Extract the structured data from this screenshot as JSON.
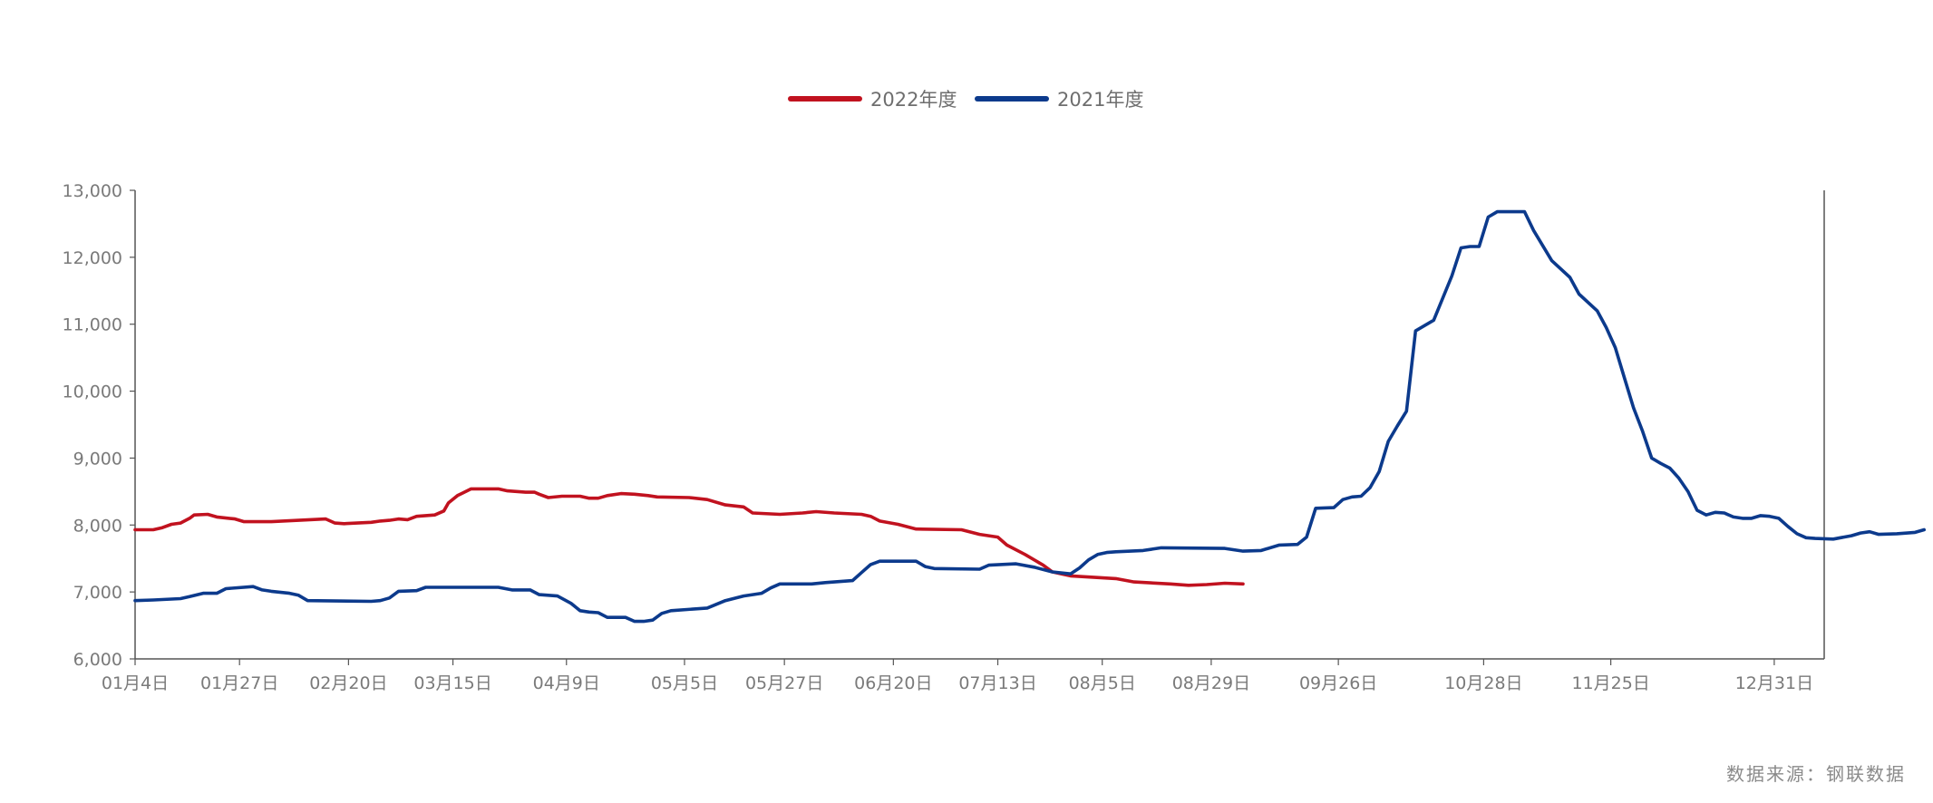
{
  "source_note": "数据来源：钢联数据",
  "colors": {
    "series_2022": "#c1121f",
    "series_2021": "#0c3a8c",
    "axis": "#555555",
    "tick_text": "#7a7a7a"
  },
  "chart_data": {
    "type": "line",
    "title": "",
    "xlabel": "",
    "ylabel": "",
    "ylim": [
      6000,
      13000
    ],
    "yticks": [
      6000,
      7000,
      8000,
      9000,
      10000,
      11000,
      12000,
      13000
    ],
    "ytick_labels": [
      "6,000",
      "7,000",
      "8,000",
      "9,000",
      "10,000",
      "11,000",
      "12,000",
      "13,000"
    ],
    "xticks": [
      {
        "day": 4,
        "label": "01月4日"
      },
      {
        "day": 27,
        "label": "01月27日"
      },
      {
        "day": 51,
        "label": "02月20日"
      },
      {
        "day": 74,
        "label": "03月15日"
      },
      {
        "day": 99,
        "label": "04月9日"
      },
      {
        "day": 125,
        "label": "05月5日"
      },
      {
        "day": 147,
        "label": "05月27日"
      },
      {
        "day": 171,
        "label": "06月20日"
      },
      {
        "day": 194,
        "label": "07月13日"
      },
      {
        "day": 217,
        "label": "08月5日"
      },
      {
        "day": 241,
        "label": "08月29日"
      },
      {
        "day": 269,
        "label": "09月26日"
      },
      {
        "day": 301,
        "label": "10月28日"
      },
      {
        "day": 329,
        "label": "11月25日"
      },
      {
        "day": 365,
        "label": "12月31日"
      }
    ],
    "legend_position": "top-center",
    "grid": false,
    "series": [
      {
        "name": "2022年度",
        "points": [
          [
            4,
            7930
          ],
          [
            8,
            7930
          ],
          [
            10,
            7960
          ],
          [
            12,
            8010
          ],
          [
            14,
            8030
          ],
          [
            16,
            8100
          ],
          [
            17,
            8150
          ],
          [
            20,
            8160
          ],
          [
            22,
            8120
          ],
          [
            26,
            8090
          ],
          [
            28,
            8050
          ],
          [
            34,
            8050
          ],
          [
            40,
            8070
          ],
          [
            46,
            8090
          ],
          [
            48,
            8030
          ],
          [
            50,
            8020
          ],
          [
            56,
            8040
          ],
          [
            58,
            8060
          ],
          [
            60,
            8070
          ],
          [
            62,
            8090
          ],
          [
            64,
            8080
          ],
          [
            66,
            8130
          ],
          [
            70,
            8150
          ],
          [
            72,
            8210
          ],
          [
            73,
            8330
          ],
          [
            75,
            8440
          ],
          [
            78,
            8540
          ],
          [
            84,
            8540
          ],
          [
            86,
            8510
          ],
          [
            90,
            8490
          ],
          [
            92,
            8490
          ],
          [
            93,
            8460
          ],
          [
            95,
            8410
          ],
          [
            98,
            8430
          ],
          [
            102,
            8430
          ],
          [
            104,
            8400
          ],
          [
            106,
            8400
          ],
          [
            108,
            8440
          ],
          [
            111,
            8470
          ],
          [
            114,
            8460
          ],
          [
            117,
            8440
          ],
          [
            119,
            8420
          ],
          [
            126,
            8410
          ],
          [
            130,
            8380
          ],
          [
            134,
            8300
          ],
          [
            138,
            8270
          ],
          [
            140,
            8180
          ],
          [
            146,
            8160
          ],
          [
            151,
            8180
          ],
          [
            154,
            8200
          ],
          [
            158,
            8180
          ],
          [
            164,
            8160
          ],
          [
            166,
            8130
          ],
          [
            168,
            8060
          ],
          [
            172,
            8010
          ],
          [
            176,
            7940
          ],
          [
            186,
            7930
          ],
          [
            190,
            7860
          ],
          [
            194,
            7820
          ],
          [
            196,
            7700
          ],
          [
            200,
            7560
          ],
          [
            204,
            7400
          ],
          [
            206,
            7300
          ],
          [
            210,
            7240
          ],
          [
            220,
            7200
          ],
          [
            224,
            7150
          ],
          [
            232,
            7120
          ],
          [
            236,
            7100
          ],
          [
            240,
            7110
          ],
          [
            244,
            7130
          ],
          [
            248,
            7120
          ]
        ]
      },
      {
        "name": "2021年度",
        "points": [
          [
            4,
            6870
          ],
          [
            8,
            6880
          ],
          [
            14,
            6900
          ],
          [
            16,
            6930
          ],
          [
            19,
            6980
          ],
          [
            22,
            6980
          ],
          [
            24,
            7050
          ],
          [
            30,
            7080
          ],
          [
            32,
            7030
          ],
          [
            34,
            7010
          ],
          [
            38,
            6980
          ],
          [
            40,
            6950
          ],
          [
            42,
            6870
          ],
          [
            56,
            6860
          ],
          [
            58,
            6870
          ],
          [
            60,
            6910
          ],
          [
            62,
            7010
          ],
          [
            66,
            7020
          ],
          [
            68,
            7070
          ],
          [
            84,
            7070
          ],
          [
            87,
            7030
          ],
          [
            91,
            7030
          ],
          [
            93,
            6960
          ],
          [
            97,
            6940
          ],
          [
            100,
            6830
          ],
          [
            102,
            6720
          ],
          [
            104,
            6700
          ],
          [
            106,
            6690
          ],
          [
            108,
            6620
          ],
          [
            112,
            6620
          ],
          [
            114,
            6560
          ],
          [
            116,
            6560
          ],
          [
            118,
            6580
          ],
          [
            120,
            6680
          ],
          [
            122,
            6720
          ],
          [
            130,
            6760
          ],
          [
            134,
            6870
          ],
          [
            138,
            6940
          ],
          [
            142,
            6980
          ],
          [
            144,
            7060
          ],
          [
            146,
            7120
          ],
          [
            153,
            7120
          ],
          [
            156,
            7140
          ],
          [
            162,
            7170
          ],
          [
            164,
            7290
          ],
          [
            166,
            7410
          ],
          [
            168,
            7460
          ],
          [
            176,
            7460
          ],
          [
            178,
            7380
          ],
          [
            180,
            7350
          ],
          [
            190,
            7340
          ],
          [
            192,
            7400
          ],
          [
            198,
            7420
          ],
          [
            202,
            7370
          ],
          [
            206,
            7300
          ],
          [
            210,
            7270
          ],
          [
            212,
            7360
          ],
          [
            214,
            7480
          ],
          [
            216,
            7560
          ],
          [
            218,
            7590
          ],
          [
            220,
            7600
          ],
          [
            226,
            7620
          ],
          [
            228,
            7640
          ],
          [
            230,
            7660
          ],
          [
            244,
            7650
          ],
          [
            248,
            7610
          ],
          [
            252,
            7620
          ],
          [
            256,
            7700
          ],
          [
            260,
            7710
          ],
          [
            262,
            7820
          ],
          [
            264,
            8250
          ],
          [
            268,
            8260
          ],
          [
            270,
            8380
          ],
          [
            272,
            8420
          ],
          [
            274,
            8430
          ],
          [
            276,
            8560
          ],
          [
            278,
            8800
          ],
          [
            280,
            9250
          ],
          [
            282,
            9480
          ],
          [
            284,
            9700
          ],
          [
            286,
            10900
          ],
          [
            288,
            10980
          ],
          [
            290,
            11060
          ],
          [
            294,
            11720
          ],
          [
            296,
            12140
          ],
          [
            298,
            12160
          ],
          [
            300,
            12160
          ],
          [
            302,
            12600
          ],
          [
            304,
            12680
          ],
          [
            310,
            12680
          ],
          [
            312,
            12400
          ],
          [
            316,
            11950
          ],
          [
            320,
            11700
          ],
          [
            322,
            11450
          ],
          [
            326,
            11200
          ],
          [
            328,
            10950
          ],
          [
            330,
            10650
          ],
          [
            332,
            10200
          ],
          [
            334,
            9750
          ],
          [
            336,
            9400
          ],
          [
            338,
            9000
          ],
          [
            340,
            8920
          ],
          [
            342,
            8850
          ],
          [
            344,
            8700
          ],
          [
            346,
            8500
          ],
          [
            348,
            8220
          ],
          [
            350,
            8150
          ],
          [
            352,
            8190
          ],
          [
            354,
            8180
          ],
          [
            356,
            8120
          ],
          [
            358,
            8100
          ],
          [
            360,
            8100
          ],
          [
            362,
            8140
          ],
          [
            364,
            8130
          ],
          [
            366,
            8100
          ],
          [
            368,
            7980
          ],
          [
            370,
            7870
          ],
          [
            372,
            7810
          ],
          [
            374,
            7800
          ],
          [
            378,
            7790
          ],
          [
            382,
            7840
          ],
          [
            384,
            7880
          ],
          [
            386,
            7900
          ],
          [
            388,
            7860
          ],
          [
            392,
            7870
          ],
          [
            396,
            7890
          ],
          [
            398,
            7930
          ]
        ]
      }
    ]
  }
}
